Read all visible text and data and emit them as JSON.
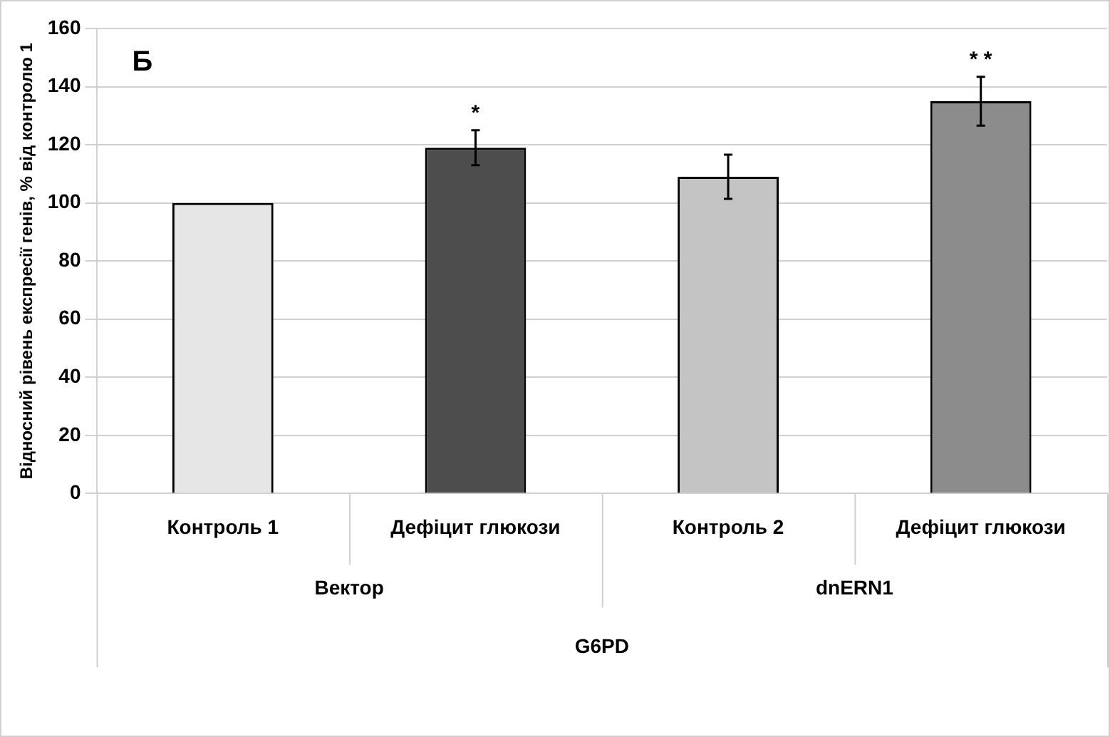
{
  "chart_data": {
    "type": "bar",
    "title": "Б",
    "ylabel": "Відносний рівень експресії генів, % від контролю 1",
    "xlabel": "G6PD",
    "categories": [
      "Контроль 1",
      "Дефіцит глюкози",
      "Контроль 2",
      "Дефіцит глюкози"
    ],
    "values": [
      100,
      119,
      109,
      135
    ],
    "colors": [
      "#e6e6e6",
      "#4d4d4d",
      "#c4c4c4",
      "#8c8c8c"
    ],
    "errors": [
      null,
      6,
      7.6,
      8.4
    ],
    "value_labels": [
      null,
      "*",
      null,
      "* *"
    ],
    "annotations": [
      "Вектор",
      "dnERN1"
    ],
    "ylim": [
      0,
      160
    ],
    "yticks": [
      0,
      20,
      40,
      60,
      80,
      100,
      120,
      140,
      160
    ],
    "grid": "y",
    "legend": false
  }
}
